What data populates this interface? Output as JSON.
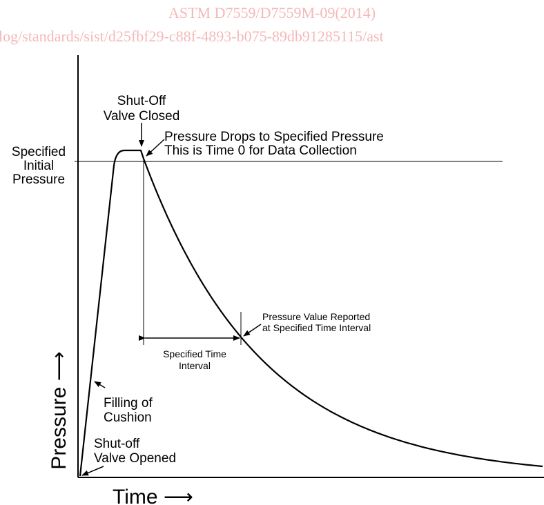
{
  "watermark": {
    "title": "ASTM D7559/D7559M-09(2014)",
    "url": "log/standards/sist/d25fbf29-c88f-4893-b075-89db91285115/ast"
  },
  "axes": {
    "y_label": "Pressure ⟶",
    "x_label": "Time ⟶"
  },
  "annotations": {
    "valve_closed": [
      "Shut-Off",
      "Valve Closed"
    ],
    "pressure_drops": [
      "Pressure Drops to Specified Pressure",
      "This is Time 0 for Data Collection"
    ],
    "initial_pressure": [
      "Specified",
      "Initial",
      "Pressure"
    ],
    "value_reported": [
      "Pressure Value Reported",
      "at Specified Time Interval"
    ],
    "time_interval": [
      "Specified Time",
      "Interval"
    ],
    "filling": [
      "Filling of",
      "Cushion"
    ],
    "valve_opened": [
      "Shut-off",
      "Valve Opened"
    ]
  }
}
